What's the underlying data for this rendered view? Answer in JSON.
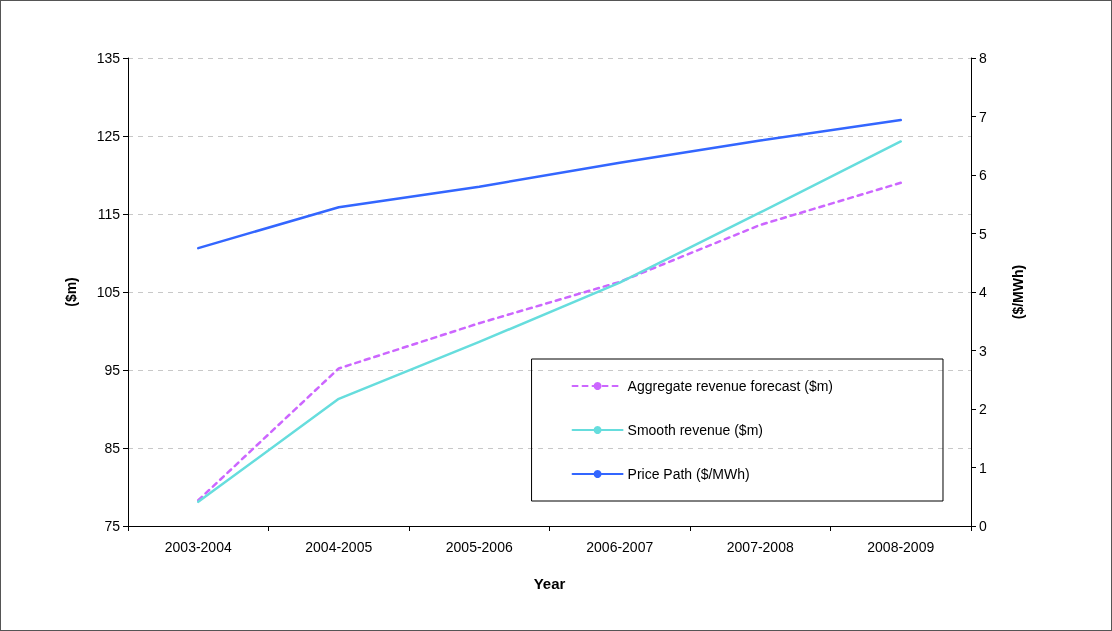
{
  "chart_data": {
    "type": "line",
    "xlabel": "Year",
    "ylabel": "($m)",
    "y2label": "($/MWh)",
    "categories": [
      "2003-2004",
      "2004-2005",
      "2005-2006",
      "2006-2007",
      "2007-2008",
      "2008-2009"
    ],
    "series": [
      {
        "name": "Aggregate revenue forecast ($m)",
        "color": "#cc66ff",
        "line_style": "dashed",
        "values": [
          78.3,
          95.2,
          101.0,
          106.3,
          113.6,
          119.0
        ]
      },
      {
        "name": "Smooth revenue ($m)",
        "color": "#66dddd",
        "line_style": "solid",
        "values": [
          78.1,
          91.3,
          98.6,
          106.2,
          115.2,
          124.3
        ]
      },
      {
        "name": "Price Path ($/MWh)",
        "color": "#3366ff",
        "line_style": "solid",
        "axis": "y2",
        "values": [
          4.75,
          5.45,
          5.8,
          6.21,
          6.59,
          6.94
        ]
      }
    ],
    "ylim": [
      75,
      135
    ],
    "yticks": [
      75,
      85,
      95,
      105,
      115,
      125,
      135
    ],
    "y2lim": [
      0,
      8
    ],
    "y2ticks": [
      0,
      1,
      2,
      3,
      4,
      5,
      6,
      7,
      8
    ],
    "grid": "y",
    "legend": "bottom right",
    "marker": "none"
  }
}
